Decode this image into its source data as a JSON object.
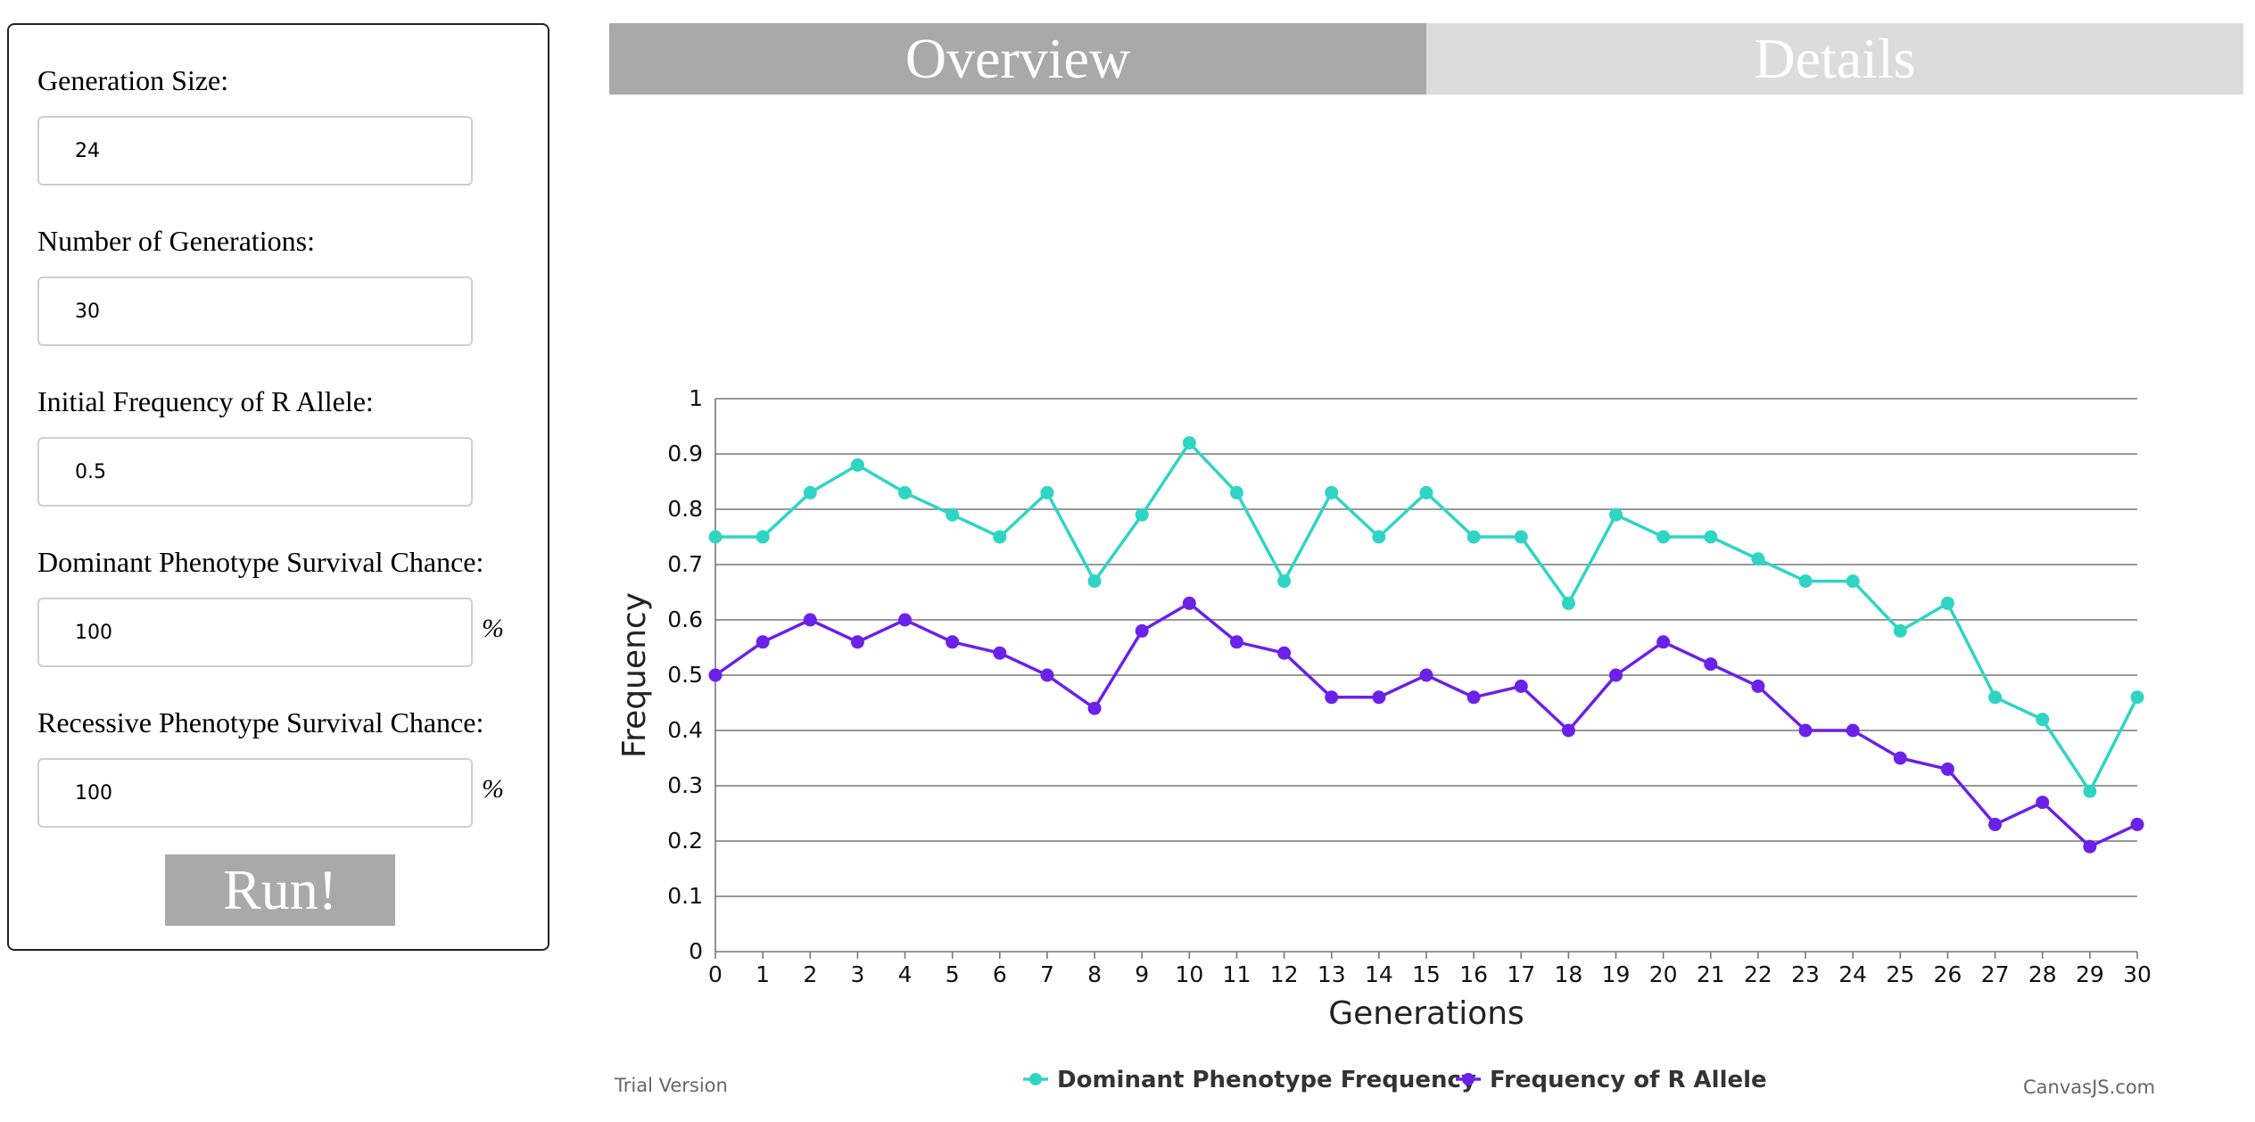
{
  "tabs": {
    "overview": "Overview",
    "details": "Details"
  },
  "form": {
    "generation_size": {
      "label": "Generation Size:",
      "value": "24"
    },
    "num_generations": {
      "label": "Number of Generations:",
      "value": "30"
    },
    "initial_freq": {
      "label": "Initial Frequency of R Allele:",
      "value": "0.5"
    },
    "dominant_survival": {
      "label": "Dominant Phenotype Survival Chance:",
      "value": "100",
      "unit": "%"
    },
    "recessive_survival": {
      "label": "Recessive Phenotype Survival Chance:",
      "value": "100",
      "unit": "%"
    },
    "run_label": "Run!"
  },
  "footer": {
    "trial": "Trial Version",
    "credit": "CanvasJS.com"
  },
  "chart_data": {
    "type": "line",
    "title": "",
    "xlabel": "Generations",
    "ylabel": "Frequency",
    "xlim": [
      0,
      30
    ],
    "ylim": [
      0,
      1
    ],
    "yticks": [
      "0",
      "0.1",
      "0.2",
      "0.3",
      "0.4",
      "0.5",
      "0.6",
      "0.7",
      "0.8",
      "0.9",
      "1"
    ],
    "grid": true,
    "legend_position": "bottom",
    "x": [
      0,
      1,
      2,
      3,
      4,
      5,
      6,
      7,
      8,
      9,
      10,
      11,
      12,
      13,
      14,
      15,
      16,
      17,
      18,
      19,
      20,
      21,
      22,
      23,
      24,
      25,
      26,
      27,
      28,
      29,
      30
    ],
    "series": [
      {
        "name": "Dominant Phenotype Frequency",
        "color": "#2ed5c4",
        "values": [
          0.75,
          0.75,
          0.83,
          0.88,
          0.83,
          0.79,
          0.75,
          0.83,
          0.67,
          0.79,
          0.92,
          0.83,
          0.67,
          0.83,
          0.75,
          0.83,
          0.75,
          0.75,
          0.63,
          0.79,
          0.75,
          0.75,
          0.71,
          0.67,
          0.67,
          0.58,
          0.63,
          0.46,
          0.42,
          0.29,
          0.46
        ]
      },
      {
        "name": "Frequency of R Allele",
        "color": "#6b21e8",
        "values": [
          0.5,
          0.56,
          0.6,
          0.56,
          0.6,
          0.56,
          0.54,
          0.5,
          0.44,
          0.58,
          0.63,
          0.56,
          0.54,
          0.46,
          0.46,
          0.5,
          0.46,
          0.48,
          0.4,
          0.5,
          0.56,
          0.52,
          0.48,
          0.4,
          0.4,
          0.35,
          0.33,
          0.23,
          0.27,
          0.19,
          0.23
        ]
      }
    ]
  }
}
